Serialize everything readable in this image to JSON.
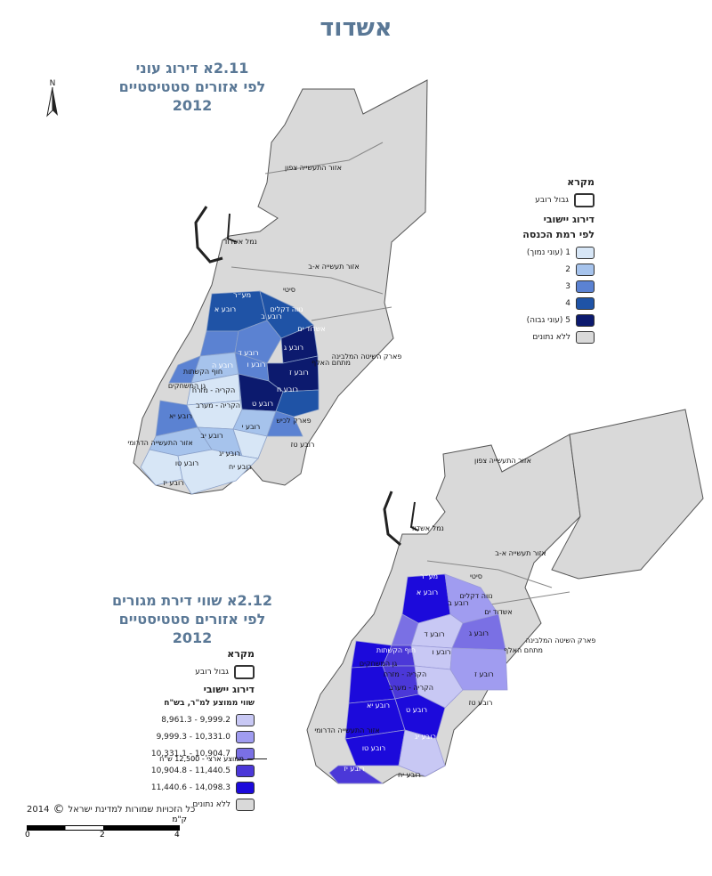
{
  "page_title": "אשדוד",
  "map1": {
    "title_line1": "2.11א  דירוג עוני",
    "title_line2": "לפי אזורים סטטיסטיים",
    "title_line3": "2012",
    "legend": {
      "heading": "מקרא",
      "boundary_label": "גבול רובע",
      "sub_heading1": "דירוג יישובי",
      "sub_heading2": "לפי רמת הכנסה",
      "classes": [
        {
          "label": "1 (עוני נמוך)",
          "color": "#d7e6f6"
        },
        {
          "label": "2",
          "color": "#a6c3ec"
        },
        {
          "label": "3",
          "color": "#5b82d2"
        },
        {
          "label": "4",
          "color": "#1f53a6"
        },
        {
          "label": "5 (עוני גבוה)",
          "color": "#0c1a6e"
        },
        {
          "label": "ללא נתונים",
          "color": "#d9d9d9"
        }
      ]
    },
    "place_labels": [
      "אזור התעשייה צפון",
      "נמל אשדוד",
      "אזור תעשייה א-ב",
      "סיטי",
      "מע״ר",
      "נווה דקלים",
      "רובע א",
      "רובע ב",
      "אשדוד ים",
      "רובע ג",
      "רובע ד",
      "רובע ה",
      "רובע ו",
      "רובע ז",
      "רובע ח",
      "רובע ט",
      "רובע י",
      "רובע יא",
      "רובע יב",
      "רובע יג",
      "רובע טו",
      "רובע יז",
      "מתחם האלף",
      "פארק השיטה המלבינה",
      "חוף הקשתות",
      "גן המשחקים",
      "אזור התעשייה הדרומי",
      "הקריה - מערב",
      "הקריה - מזרח",
      "פארק לכיש",
      "רובע טז",
      "רובע יח",
      "אזור תעשייה צפון",
      "נמל אשדוד"
    ]
  },
  "map2": {
    "title_line1": "2.12א  שווי דירת מגורים",
    "title_line2": "לפי אזורים סטטיסטיים",
    "title_line3": "2012",
    "legend": {
      "heading": "מקרא",
      "boundary_label": "גבול רובע",
      "sub_heading1": "דירוג יישובי",
      "sub_heading2": "שווי ממוצע למ\"ר, בש\"ח",
      "classes": [
        {
          "label": "9,999.2 - 8,961.3",
          "color": "#c8c8f4"
        },
        {
          "label": "10,331.0 - 9,999.3",
          "color": "#a09cf0"
        },
        {
          "label": "10,904.7 - 10,331.1",
          "color": "#7a70e4"
        },
        {
          "label": "11,440.5 - 10,904.8",
          "color": "#4b38d8"
        },
        {
          "label": "14,098.3 - 11,440.6",
          "color": "#1c0adb"
        },
        {
          "label": "ללא נתונים",
          "color": "#d9d9d9"
        }
      ],
      "average_note": "ממוצע ארצי - 12,500 ש\"ח"
    }
  },
  "footer": {
    "copyright": "כל הזכויות שמורות למדינת ישראל",
    "year": "2014",
    "scale_unit": "ק\"מ",
    "scale_ticks": [
      "0",
      "2",
      "4"
    ]
  },
  "colors": {
    "title": "#5a7896",
    "land": "#d9d9d9",
    "boundary": "#555555"
  }
}
